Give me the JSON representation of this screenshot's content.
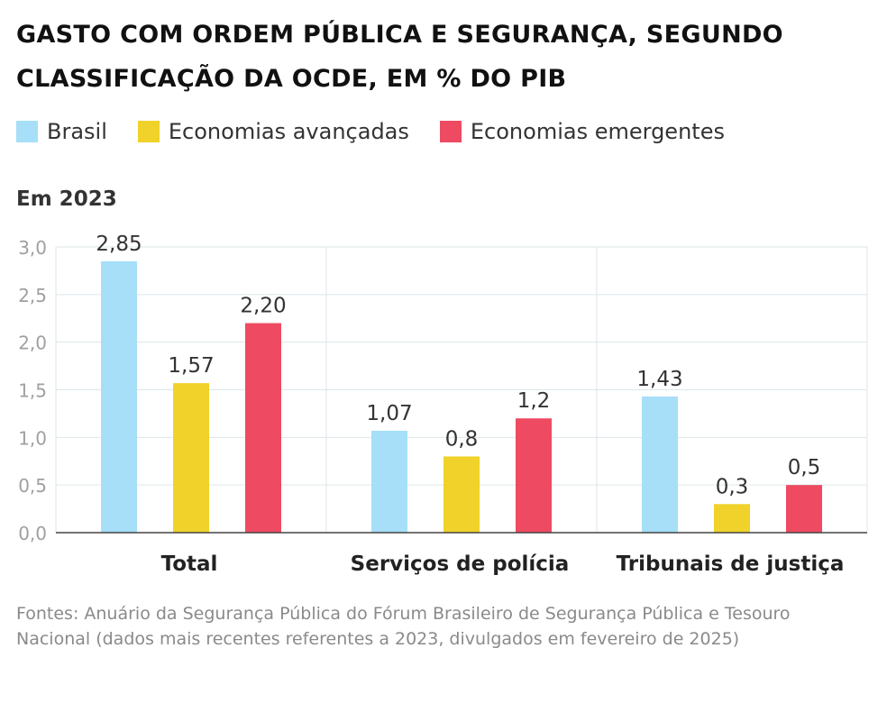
{
  "title": "GASTO COM ORDEM PÚBLICA E SEGURANÇA, SEGUNDO CLASSIFICAÇÃO DA OCDE, EM % DO PIB",
  "subtitle": "Em 2023",
  "source": "Fontes: Anuário da Segurança Pública do Fórum Brasileiro de Segurança Pública e Tesouro Nacional (dados mais recentes referentes a 2023, divulgados em fevereiro de 2025)",
  "chart_data": {
    "type": "bar",
    "categories": [
      "Total",
      "Serviços de polícia",
      "Tribunais de justiça"
    ],
    "series": [
      {
        "name": "Brasil",
        "color": "#a6dff7",
        "values": [
          2.85,
          1.07,
          1.43
        ],
        "labels": [
          "2,85",
          "1,07",
          "1,43"
        ]
      },
      {
        "name": "Economias avançadas",
        "color": "#f0d22a",
        "values": [
          1.57,
          0.8,
          0.3
        ],
        "labels": [
          "1,57",
          "0,8",
          "0,3"
        ]
      },
      {
        "name": "Economias emergentes",
        "color": "#ee4a62",
        "values": [
          2.2,
          1.2,
          0.5
        ],
        "labels": [
          "2,20",
          "1,2",
          "0,5"
        ]
      }
    ],
    "ylim": [
      0,
      3.0
    ],
    "yticks": [
      0,
      0.5,
      1.0,
      1.5,
      2.0,
      2.5,
      3.0
    ],
    "ytick_labels": [
      "0,0",
      "0,5",
      "1,0",
      "1,5",
      "2,0",
      "2,5",
      "3,0"
    ],
    "grid": true,
    "legend": "top-left"
  }
}
